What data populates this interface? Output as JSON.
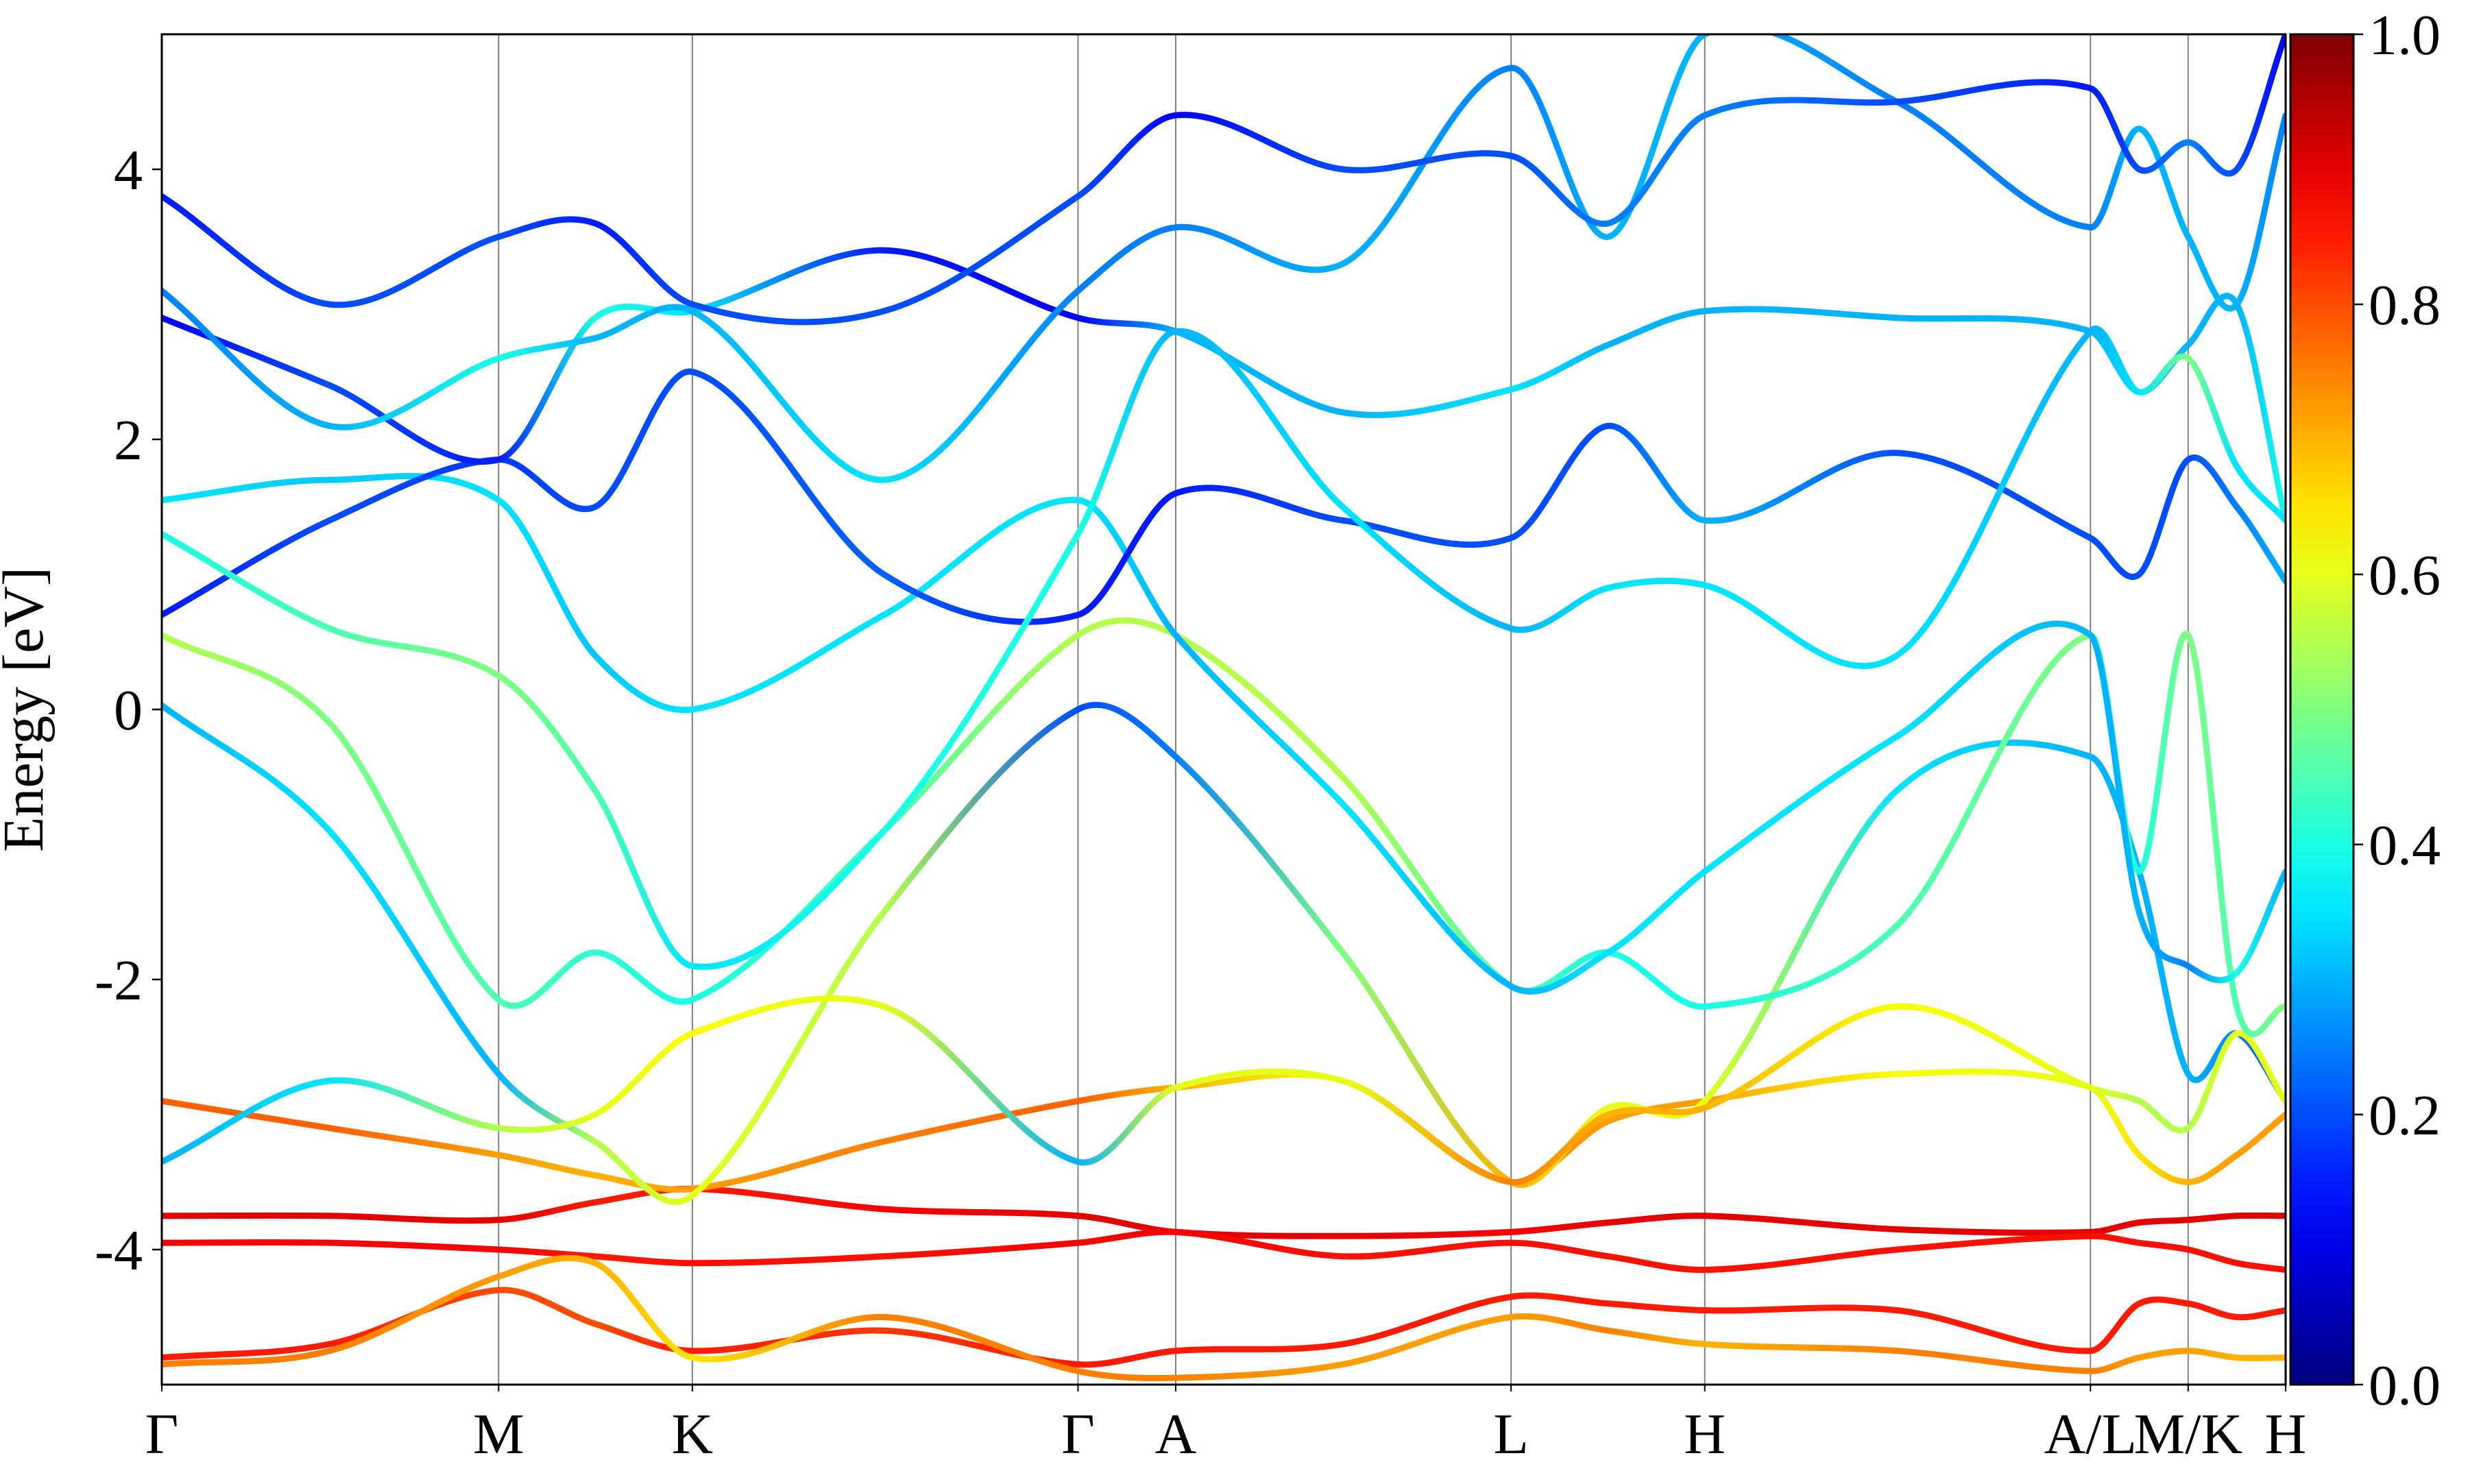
{
  "chart_data": {
    "type": "band-structure",
    "ylabel": "Energy [eV]",
    "ylim": [
      -5,
      5
    ],
    "yticks": [
      4,
      2,
      0,
      -2,
      -4
    ],
    "xlim": [
      0,
      1
    ],
    "xticks": [
      {
        "value": 0,
        "label": "Γ"
      },
      {
        "value": 0.1586,
        "label": "M"
      },
      {
        "value": 0.2498,
        "label": "K"
      },
      {
        "value": 0.4314,
        "label": "Γ"
      },
      {
        "value": 0.4774,
        "label": "A"
      },
      {
        "value": 0.6353,
        "label": "L"
      },
      {
        "value": 0.7265,
        "label": "H"
      },
      {
        "value": 0.9081,
        "label": "A/L"
      },
      {
        "value": 0.9541,
        "label": "M/K"
      },
      {
        "value": 1.0,
        "label": "H"
      }
    ],
    "colormap": "jet",
    "clim": [
      0,
      1
    ],
    "cticks": [
      {
        "value": 0,
        "label": "0.0"
      },
      0.2,
      0.4,
      0.6,
      0.8,
      {
        "value": 1,
        "label": "1.0"
      }
    ],
    "x": [
      0,
      0.079,
      0.1586,
      0.204,
      0.2498,
      0.34,
      0.4314,
      0.4774,
      0.556,
      0.6353,
      0.681,
      0.7265,
      0.817,
      0.9081,
      0.931,
      0.9541,
      0.977,
      1.0
    ],
    "series": [
      {
        "values": [
          -3.75,
          -3.75,
          -3.78,
          -3.65,
          -3.55,
          -3.7,
          -3.75,
          -3.87,
          -3.9,
          -3.87,
          -3.8,
          -3.75,
          -3.85,
          -3.87,
          -3.8,
          -3.78,
          -3.75,
          -3.75
        ],
        "weights": [
          0.9,
          0.9,
          0.9,
          0.85,
          0.85,
          0.88,
          0.9,
          0.9,
          0.9,
          0.88,
          0.9,
          0.9,
          0.9,
          0.9,
          0.9,
          0.9,
          0.9,
          0.9
        ]
      },
      {
        "values": [
          -3.95,
          -3.95,
          -4.0,
          -4.05,
          -4.1,
          -4.05,
          -3.95,
          -3.87,
          -4.05,
          -3.95,
          -4.05,
          -4.15,
          -4.0,
          -3.9,
          -3.95,
          -4.0,
          -4.1,
          -4.15
        ],
        "weights": [
          0.88,
          0.88,
          0.88,
          0.85,
          0.86,
          0.86,
          0.88,
          0.88,
          0.86,
          0.86,
          0.86,
          0.86,
          0.86,
          0.86,
          0.86,
          0.86,
          0.86,
          0.86
        ]
      },
      {
        "values": [
          -4.8,
          -4.7,
          -4.3,
          -4.55,
          -4.75,
          -4.6,
          -4.85,
          -4.75,
          -4.7,
          -4.35,
          -4.4,
          -4.45,
          -4.45,
          -4.75,
          -4.4,
          -4.4,
          -4.5,
          -4.45
        ],
        "weights": [
          0.85,
          0.85,
          0.8,
          0.8,
          0.85,
          0.82,
          0.85,
          0.85,
          0.85,
          0.85,
          0.85,
          0.85,
          0.85,
          0.85,
          0.85,
          0.85,
          0.85,
          0.85
        ]
      },
      {
        "values": [
          -4.85,
          -4.75,
          -4.2,
          -4.1,
          -4.8,
          -4.5,
          -4.9,
          -4.95,
          -4.85,
          -4.5,
          -4.6,
          -4.7,
          -4.75,
          -4.9,
          -4.8,
          -4.75,
          -4.8,
          -4.8
        ],
        "weights": [
          0.75,
          0.75,
          0.72,
          0.7,
          0.65,
          0.75,
          0.75,
          0.75,
          0.72,
          0.72,
          0.75,
          0.7,
          0.75,
          0.75,
          0.72,
          0.72,
          0.7,
          0.7
        ]
      },
      {
        "values": [
          -2.9,
          -3.1,
          -3.3,
          -3.45,
          -3.55,
          -3.2,
          -2.9,
          -2.8,
          -2.75,
          -3.5,
          -3.05,
          -2.9,
          -2.7,
          -2.8,
          -3.3,
          -3.5,
          -3.3,
          -3.0
        ],
        "weights": [
          0.78,
          0.78,
          0.72,
          0.7,
          0.72,
          0.75,
          0.78,
          0.7,
          0.62,
          0.75,
          0.72,
          0.72,
          0.62,
          0.6,
          0.65,
          0.7,
          0.72,
          0.72
        ]
      },
      {
        "values": [
          0.03,
          -0.9,
          -2.7,
          -3.2,
          -3.6,
          -1.5,
          0.0,
          -0.35,
          -1.8,
          -3.5,
          -2.95,
          -2.9,
          -0.6,
          -0.35,
          -1.2,
          -2.7,
          -2.4,
          -2.9
        ],
        "weights": [
          0.3,
          0.35,
          0.3,
          0.55,
          0.6,
          0.55,
          0.2,
          0.25,
          0.5,
          0.7,
          0.6,
          0.6,
          0.35,
          0.3,
          0.3,
          0.3,
          0.25,
          0.2
        ]
      },
      {
        "values": [
          -3.35,
          -2.75,
          -3.1,
          -3.0,
          -2.4,
          -2.2,
          -3.35,
          -2.8,
          -2.75,
          -3.5,
          -3.0,
          -2.95,
          -2.2,
          -2.8,
          -2.9,
          -3.1,
          -2.4,
          -2.9
        ],
        "weights": [
          0.3,
          0.35,
          0.55,
          0.6,
          0.62,
          0.6,
          0.3,
          0.6,
          0.6,
          0.75,
          0.7,
          0.7,
          0.62,
          0.6,
          0.55,
          0.55,
          0.6,
          0.6
        ]
      },
      {
        "values": [
          0.55,
          -0.1,
          -2.15,
          -1.8,
          -2.15,
          -0.9,
          0.55,
          0.55,
          -0.5,
          -2.05,
          -1.8,
          -2.2,
          -1.6,
          0.55,
          -1.2,
          0.55,
          -2.2,
          -2.2
        ],
        "weights": [
          0.55,
          0.5,
          0.45,
          0.42,
          0.4,
          0.45,
          0.55,
          0.55,
          0.55,
          0.45,
          0.4,
          0.4,
          0.45,
          0.5,
          0.4,
          0.5,
          0.45,
          0.5
        ]
      },
      {
        "values": [
          1.55,
          1.7,
          1.55,
          0.4,
          0.0,
          0.7,
          1.55,
          0.55,
          -0.7,
          -2.05,
          -1.8,
          -1.2,
          -0.2,
          0.55,
          -1.5,
          -1.9,
          -1.95,
          -1.2
        ],
        "weights": [
          0.35,
          0.32,
          0.35,
          0.32,
          0.35,
          0.35,
          0.35,
          0.3,
          0.35,
          0.3,
          0.35,
          0.35,
          0.35,
          0.3,
          0.3,
          0.25,
          0.4,
          0.3
        ]
      },
      {
        "values": [
          0.7,
          1.4,
          1.85,
          1.5,
          2.5,
          1.0,
          0.7,
          1.6,
          1.4,
          1.27,
          2.1,
          1.4,
          1.9,
          1.27,
          1.0,
          1.85,
          1.5,
          0.95
        ],
        "weights": [
          0.15,
          0.2,
          0.18,
          0.2,
          0.2,
          0.22,
          0.15,
          0.15,
          0.2,
          0.2,
          0.2,
          0.3,
          0.2,
          0.2,
          0.2,
          0.2,
          0.25,
          0.3
        ]
      },
      {
        "values": [
          2.9,
          2.4,
          1.85,
          2.9,
          2.95,
          3.4,
          2.9,
          2.8,
          2.2,
          2.37,
          2.7,
          2.95,
          2.9,
          2.8,
          2.35,
          2.7,
          3.0,
          1.4
        ],
        "weights": [
          0.12,
          0.2,
          0.15,
          0.4,
          0.35,
          0.15,
          0.12,
          0.3,
          0.3,
          0.35,
          0.3,
          0.3,
          0.3,
          0.3,
          0.35,
          0.3,
          0.3,
          0.4
        ]
      },
      {
        "values": [
          3.1,
          2.1,
          2.6,
          2.75,
          2.95,
          1.7,
          3.1,
          3.57,
          3.3,
          4.75,
          3.5,
          5.0,
          4.5,
          3.57,
          4.3,
          3.5,
          3.0,
          4.4
        ],
        "weights": [
          0.25,
          0.3,
          0.4,
          0.3,
          0.3,
          0.35,
          0.25,
          0.25,
          0.3,
          0.25,
          0.3,
          0.3,
          0.25,
          0.25,
          0.3,
          0.3,
          0.3,
          0.25
        ]
      },
      {
        "values": [
          3.8,
          3.0,
          3.5,
          3.6,
          3.0,
          2.95,
          3.8,
          4.4,
          4.0,
          4.1,
          3.6,
          4.4,
          4.5,
          4.6,
          4.0,
          4.2,
          4.0,
          5.0
        ],
        "weights": [
          0.15,
          0.2,
          0.2,
          0.15,
          0.2,
          0.2,
          0.2,
          0.12,
          0.2,
          0.2,
          0.25,
          0.25,
          0.2,
          0.15,
          0.2,
          0.25,
          0.2,
          0.12
        ]
      },
      {
        "values": [
          1.3,
          0.6,
          0.25,
          -0.6,
          -1.9,
          -0.9,
          1.3,
          2.8,
          1.5,
          0.6,
          0.9,
          0.92,
          0.4,
          2.8,
          2.35,
          2.6,
          1.8,
          1.4
        ],
        "weights": [
          0.4,
          0.45,
          0.5,
          0.45,
          0.35,
          0.4,
          0.4,
          0.3,
          0.35,
          0.3,
          0.35,
          0.35,
          0.35,
          0.3,
          0.35,
          0.5,
          0.35,
          0.35
        ]
      }
    ]
  }
}
